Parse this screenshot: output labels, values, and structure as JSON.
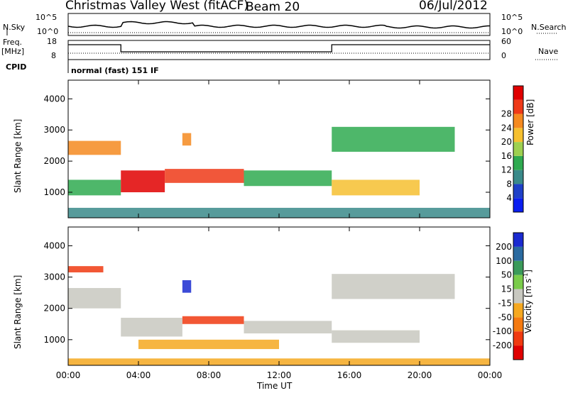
{
  "header": {
    "station": "Christmas Valley West (fitACF)",
    "beam": "Beam 20",
    "date": "06/Jul/2012"
  },
  "panels": {
    "noise_left_label": "N.Sky",
    "noise_right_label": "N.Search",
    "noise_ticks": [
      "10^5",
      "10^0"
    ],
    "freq_label_1": "Freq.",
    "freq_label_2": "[MHz]",
    "freq_ticks": [
      "18",
      "8"
    ],
    "nave_label": "Nave",
    "nave_ticks": [
      "60",
      "0"
    ],
    "cpid_label": "CPID",
    "cpid_value": "normal (fast) 151 IF"
  },
  "chart_data": [
    {
      "type": "heatmap",
      "title": "",
      "quantity": "Power",
      "ylabel": "Slant Range [km]",
      "xlabel": "Time UT",
      "x_ticks": [
        "00:00",
        "04:00",
        "08:00",
        "12:00",
        "16:00",
        "20:00",
        "00:00"
      ],
      "xlim": [
        0,
        24
      ],
      "ylim": [
        180,
        4600
      ],
      "y_ticks": [
        1000,
        2000,
        3000,
        4000
      ],
      "colorbar": {
        "label": "Power [dB]",
        "ticks": [
          "4",
          "8",
          "12",
          "16",
          "20",
          "24",
          "28"
        ],
        "colors": [
          "#0a1ef0",
          "#1e40c8",
          "#3a8a8a",
          "#2faa50",
          "#9ed050",
          "#f6c030",
          "#f58a20",
          "#ef3a18",
          "#e00000"
        ]
      },
      "regions": [
        {
          "t0": 0.0,
          "t1": 3.0,
          "r0": 2200,
          "r1": 2650,
          "value": 20
        },
        {
          "t0": 0.0,
          "t1": 3.0,
          "r0": 900,
          "r1": 1400,
          "value": 12
        },
        {
          "t0": 3.0,
          "t1": 5.5,
          "r0": 1000,
          "r1": 1700,
          "value": 28
        },
        {
          "t0": 5.5,
          "t1": 10.0,
          "r0": 1300,
          "r1": 1750,
          "value": 24
        },
        {
          "t0": 6.5,
          "t1": 7.0,
          "r0": 2500,
          "r1": 2900,
          "value": 22
        },
        {
          "t0": 10.0,
          "t1": 15.0,
          "r0": 1200,
          "r1": 1700,
          "value": 12
        },
        {
          "t0": 15.0,
          "t1": 20.0,
          "r0": 900,
          "r1": 1400,
          "value": 18
        },
        {
          "t0": 15.0,
          "t1": 22.0,
          "r0": 2300,
          "r1": 3100,
          "value": 12
        },
        {
          "t0": 0.0,
          "t1": 24.0,
          "r0": 180,
          "r1": 500,
          "value": 8
        }
      ]
    },
    {
      "type": "heatmap",
      "title": "",
      "quantity": "Velocity",
      "ylabel": "Slant Range [km]",
      "xlabel": "Time UT",
      "x_ticks": [
        "00:00",
        "04:00",
        "08:00",
        "12:00",
        "16:00",
        "20:00",
        "00:00"
      ],
      "xlim": [
        0,
        24
      ],
      "ylim": [
        180,
        4600
      ],
      "y_ticks": [
        1000,
        2000,
        3000,
        4000
      ],
      "colorbar": {
        "label": "Velocity [m s",
        "label_sup": "-1",
        "label_end": "]",
        "ticks": [
          "200",
          "100",
          "50",
          "15",
          "-15",
          "-50",
          "-100",
          "-200"
        ],
        "colors": [
          "#1a2ad0",
          "#2a6aa0",
          "#3b9a5a",
          "#7acc4a",
          "#c8c8c0",
          "#f5a820",
          "#f57a10",
          "#f03a10",
          "#e00000"
        ]
      },
      "regions": [
        {
          "t0": 0.0,
          "t1": 3.0,
          "r0": 2000,
          "r1": 2650,
          "value": 0
        },
        {
          "t0": 0.0,
          "t1": 2.0,
          "r0": 3150,
          "r1": 3350,
          "value": -200
        },
        {
          "t0": 3.0,
          "t1": 6.5,
          "r0": 1100,
          "r1": 1700,
          "value": 0
        },
        {
          "t0": 6.5,
          "t1": 7.0,
          "r0": 2500,
          "r1": 2900,
          "value": 200
        },
        {
          "t0": 6.5,
          "t1": 10.0,
          "r0": 1500,
          "r1": 1750,
          "value": -200
        },
        {
          "t0": 4.0,
          "t1": 12.0,
          "r0": 700,
          "r1": 1000,
          "value": -50
        },
        {
          "t0": 10.0,
          "t1": 15.0,
          "r0": 1200,
          "r1": 1600,
          "value": 0
        },
        {
          "t0": 15.0,
          "t1": 22.0,
          "r0": 2300,
          "r1": 3100,
          "value": 0
        },
        {
          "t0": 15.0,
          "t1": 20.0,
          "r0": 900,
          "r1": 1300,
          "value": 0
        },
        {
          "t0": 0.0,
          "t1": 24.0,
          "r0": 180,
          "r1": 400,
          "value": -50
        }
      ]
    }
  ]
}
